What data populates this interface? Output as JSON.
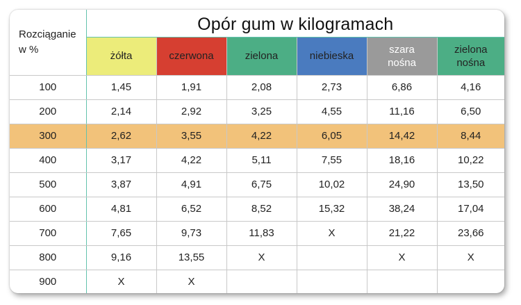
{
  "title": "Opór gum w kilogramach",
  "stretch_header": [
    "Rozciąganie",
    "w %"
  ],
  "columns": [
    {
      "label": [
        "żółta"
      ],
      "color": "#ecec7a",
      "text": "#222222"
    },
    {
      "label": [
        "czerwona"
      ],
      "color": "#d63f31",
      "text": "#222222"
    },
    {
      "label": [
        "zielona"
      ],
      "color": "#4cae85",
      "text": "#222222"
    },
    {
      "label": [
        "niebieska"
      ],
      "color": "#4a7bbf",
      "text": "#222222"
    },
    {
      "label": [
        "szara",
        "nośna"
      ],
      "color": "#9a9a9a",
      "text": "#ffffff"
    },
    {
      "label": [
        "zielona",
        "nośna"
      ],
      "color": "#4cae85",
      "text": "#222222"
    }
  ],
  "rows": [
    {
      "stretch": "100",
      "values": [
        "1,45",
        "1,91",
        "2,08",
        "2,73",
        "6,86",
        "4,16"
      ]
    },
    {
      "stretch": "200",
      "values": [
        "2,14",
        "2,92",
        "3,25",
        "4,55",
        "11,16",
        "6,50"
      ]
    },
    {
      "stretch": "300",
      "values": [
        "2,62",
        "3,55",
        "4,22",
        "6,05",
        "14,42",
        "8,44"
      ],
      "highlight": true
    },
    {
      "stretch": "400",
      "values": [
        "3,17",
        "4,22",
        "5,11",
        "7,55",
        "18,16",
        "10,22"
      ]
    },
    {
      "stretch": "500",
      "values": [
        "3,87",
        "4,91",
        "6,75",
        "10,02",
        "24,90",
        "13,50"
      ]
    },
    {
      "stretch": "600",
      "values": [
        "4,81",
        "6,52",
        "8,52",
        "15,32",
        "38,24",
        "17,04"
      ]
    },
    {
      "stretch": "700",
      "values": [
        "7,65",
        "9,73",
        "11,83",
        "X",
        "21,22",
        "23,66"
      ]
    },
    {
      "stretch": "800",
      "values": [
        "9,16",
        "13,55",
        "X",
        "",
        "X",
        "X"
      ]
    },
    {
      "stretch": "900",
      "values": [
        "X",
        "X",
        "",
        "",
        "",
        ""
      ]
    }
  ],
  "colors": {
    "highlight_row": "#f2c27a",
    "x_mark": "#e02020",
    "accent_line": "#62c2ad"
  }
}
